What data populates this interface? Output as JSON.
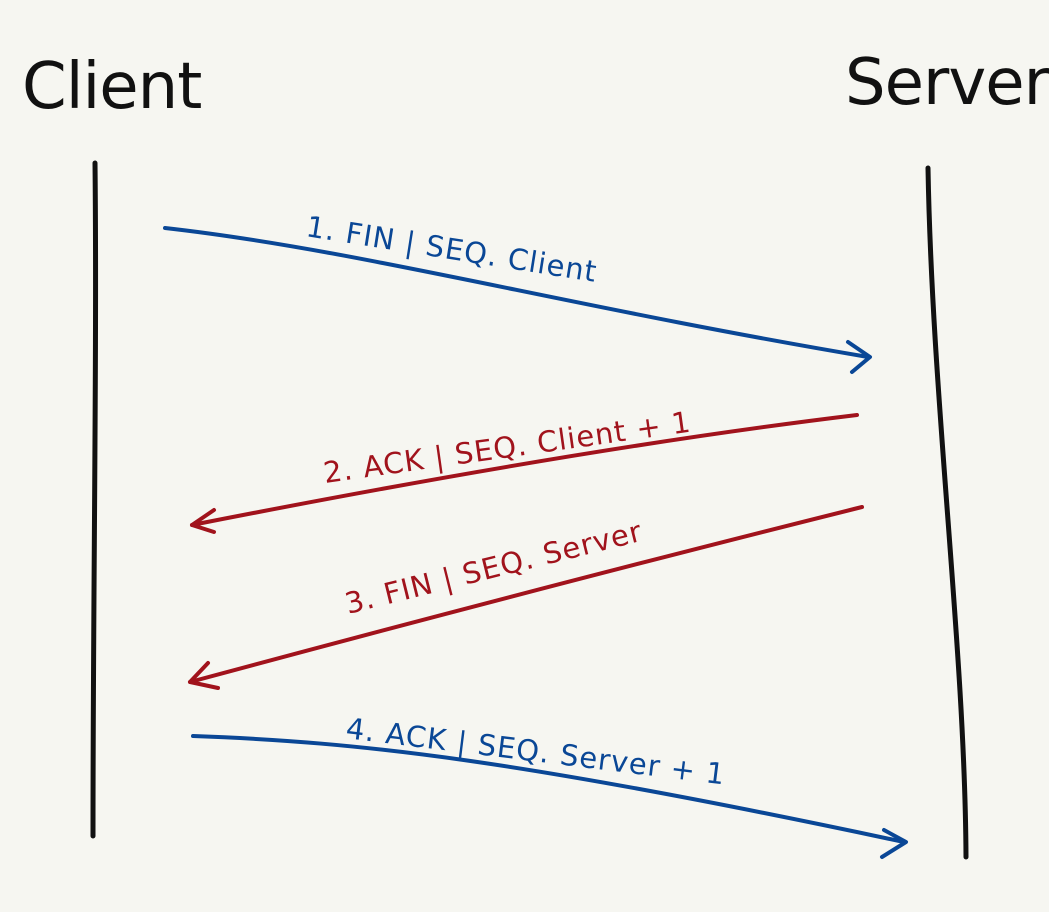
{
  "actors": {
    "client": "Client",
    "server": "Server"
  },
  "messages": [
    {
      "label": "1. FIN | SEQ. Client"
    },
    {
      "label": "2. ACK | SEQ. Client + 1"
    },
    {
      "label": "3. FIN | SEQ. Server"
    },
    {
      "label": "4. ACK | SEQ. Server + 1"
    }
  ],
  "colors": {
    "background": "#f6f6f1",
    "ink": "#111111",
    "blue": "#0a4796",
    "red": "#a1131c"
  }
}
